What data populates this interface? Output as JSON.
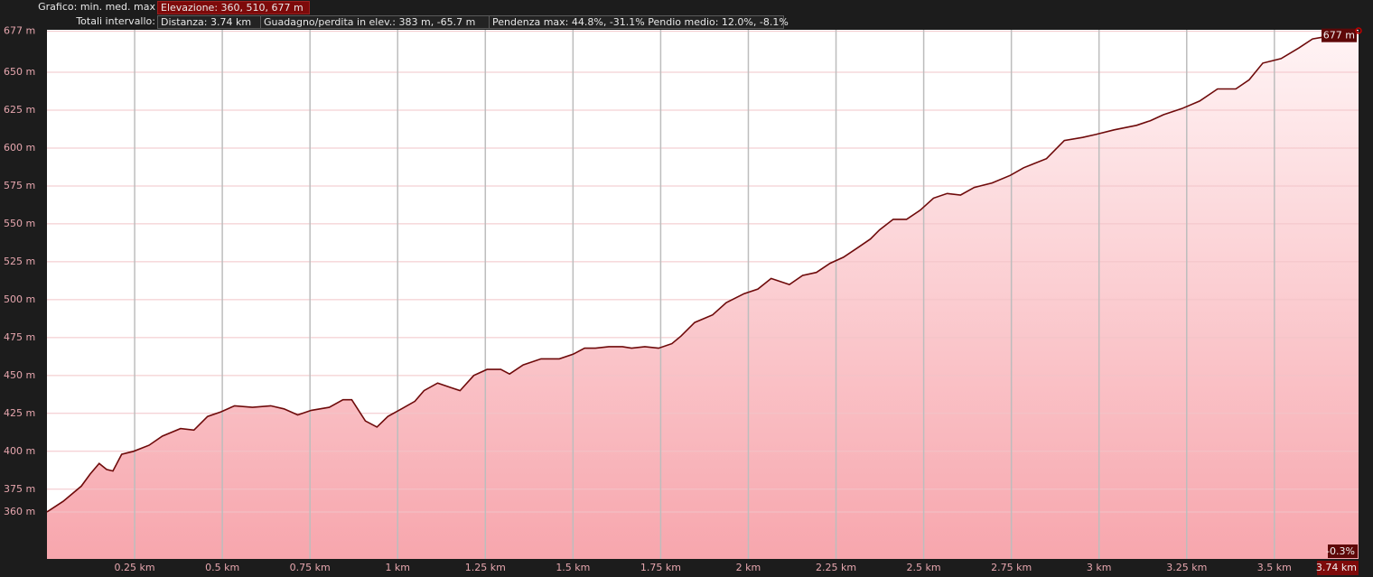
{
  "header": {
    "graph_label": "Grafico: min. med. max",
    "elevation": "Elevazione: 360, 510, 677 m",
    "totals_label": "Totali intervallo:",
    "distance": "Distanza: 3.74 km",
    "gain_loss": "Guadagno/perdita in elev.: 383 m, -65.7 m",
    "slope": "Pendenza max: 44.8%, -31.1% Pendio medio: 12.0%, -8.1%"
  },
  "chart_data": {
    "type": "area",
    "x": [
      0,
      0.046,
      0.098,
      0.123,
      0.149,
      0.17,
      0.188,
      0.213,
      0.247,
      0.291,
      0.329,
      0.381,
      0.419,
      0.458,
      0.496,
      0.535,
      0.586,
      0.638,
      0.676,
      0.715,
      0.754,
      0.805,
      0.844,
      0.869,
      0.908,
      0.941,
      0.972,
      1.011,
      1.049,
      1.075,
      1.114,
      1.152,
      1.178,
      1.217,
      1.255,
      1.294,
      1.319,
      1.358,
      1.409,
      1.461,
      1.5,
      1.533,
      1.564,
      1.602,
      1.641,
      1.667,
      1.705,
      1.744,
      1.782,
      1.808,
      1.847,
      1.898,
      1.937,
      1.988,
      2.027,
      2.065,
      2.091,
      2.117,
      2.155,
      2.194,
      2.233,
      2.271,
      2.31,
      2.348,
      2.374,
      2.413,
      2.451,
      2.49,
      2.528,
      2.567,
      2.605,
      2.644,
      2.695,
      2.747,
      2.785,
      2.85,
      2.901,
      2.953,
      2.991,
      3.043,
      3.107,
      3.146,
      3.184,
      3.236,
      3.287,
      3.338,
      3.39,
      3.428,
      3.467,
      3.519,
      3.57,
      3.609,
      3.66,
      3.7,
      3.74
    ],
    "series": [
      {
        "color": "#6e0a0a",
        "values": [
          360,
          367,
          377,
          385,
          392,
          388,
          387,
          398,
          400,
          404,
          410,
          415,
          414,
          423,
          426,
          430,
          429,
          430,
          428,
          424,
          427,
          429,
          434,
          434,
          420,
          416,
          423,
          428,
          433,
          440,
          445,
          442,
          440,
          450,
          454,
          454,
          451,
          457,
          461,
          461,
          464,
          468,
          468,
          469,
          469,
          468,
          469,
          468,
          471,
          476,
          485,
          490,
          498,
          504,
          507,
          514,
          512,
          510,
          516,
          518,
          524,
          528,
          534,
          540,
          546,
          553,
          553,
          559,
          567,
          570,
          569,
          574,
          577,
          582,
          587,
          593,
          605,
          607,
          609,
          612,
          615,
          618,
          622,
          626,
          631,
          639,
          639,
          645,
          656,
          659,
          666,
          672,
          674,
          676,
          677
        ]
      }
    ],
    "fill_colors": [
      "#fff4f5",
      "#f7a6ad"
    ],
    "xlim": [
      0,
      3.74
    ],
    "ylim": [
      329,
      678
    ],
    "xticks": [
      {
        "value": 0.25,
        "label": "0.25 km"
      },
      {
        "value": 0.5,
        "label": "0.5 km"
      },
      {
        "value": 0.75,
        "label": "0.75 km"
      },
      {
        "value": 1,
        "label": "1 km"
      },
      {
        "value": 1.25,
        "label": "1.25 km"
      },
      {
        "value": 1.5,
        "label": "1.5 km"
      },
      {
        "value": 1.75,
        "label": "1.75 km"
      },
      {
        "value": 2,
        "label": "2 km"
      },
      {
        "value": 2.25,
        "label": "2.25 km"
      },
      {
        "value": 2.5,
        "label": "2.5 km"
      },
      {
        "value": 2.75,
        "label": "2.75 km"
      },
      {
        "value": 3,
        "label": "3 km"
      },
      {
        "value": 3.25,
        "label": "3.25 km"
      },
      {
        "value": 3.5,
        "label": "3.5 km"
      },
      {
        "value": 3.74,
        "label": "3.74 km"
      }
    ],
    "yticks": [
      {
        "value": 360,
        "label": "360 m"
      },
      {
        "value": 375,
        "label": "375 m"
      },
      {
        "value": 400,
        "label": "400 m"
      },
      {
        "value": 425,
        "label": "425 m"
      },
      {
        "value": 450,
        "label": "450 m"
      },
      {
        "value": 475,
        "label": "475 m"
      },
      {
        "value": 500,
        "label": "500 m"
      },
      {
        "value": 525,
        "label": "525 m"
      },
      {
        "value": 550,
        "label": "550 m"
      },
      {
        "value": 575,
        "label": "575 m"
      },
      {
        "value": 600,
        "label": "600 m"
      },
      {
        "value": 625,
        "label": "625 m"
      },
      {
        "value": 650,
        "label": "650 m"
      },
      {
        "value": 677,
        "label": "677 m"
      }
    ],
    "grid": true,
    "end_elevation_label": "677 m",
    "end_slope_label": "-0.3%"
  }
}
